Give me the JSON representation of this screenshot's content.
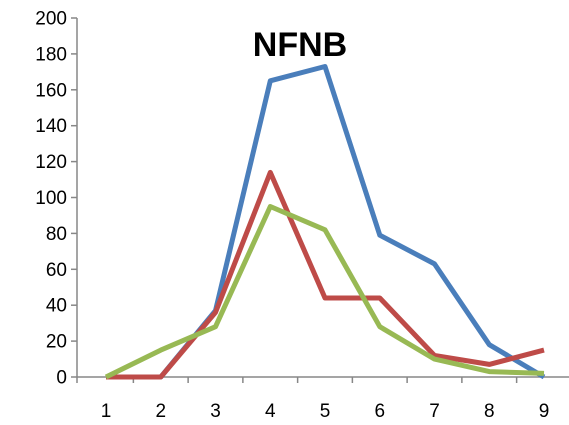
{
  "chart_data": {
    "type": "line",
    "title": "NFNB",
    "xlabel": "",
    "ylabel": "",
    "x": [
      "1",
      "2",
      "3",
      "4",
      "5",
      "6",
      "7",
      "8",
      "9"
    ],
    "ylim": [
      0,
      200
    ],
    "yticks": [
      "0",
      "20",
      "40",
      "60",
      "80",
      "100",
      "120",
      "140",
      "160",
      "180",
      "200"
    ],
    "grid": false,
    "legend": "none",
    "series": [
      {
        "color": "#4a7ebb",
        "values": [
          0,
          0,
          37,
          165,
          173,
          79,
          63,
          18,
          0
        ]
      },
      {
        "color": "#be4b48",
        "values": [
          0,
          0,
          36,
          114,
          44,
          44,
          12,
          7,
          15
        ]
      },
      {
        "color": "#98b954",
        "values": [
          0,
          15,
          28,
          95,
          82,
          28,
          10,
          3,
          2
        ]
      }
    ]
  }
}
